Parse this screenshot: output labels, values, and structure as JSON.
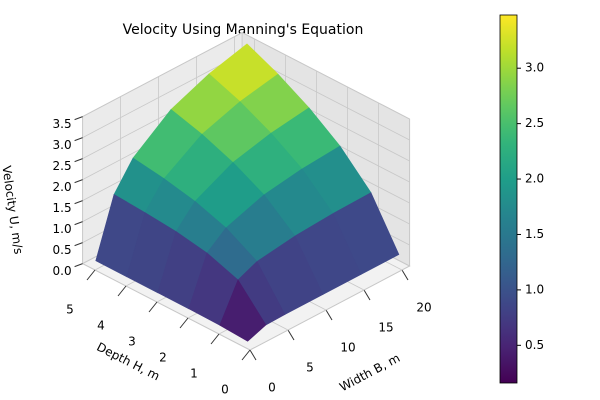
{
  "chart_data": {
    "type": "surface",
    "title": "Velocity Using Manning's Equation",
    "xlabel": "Width B, m",
    "ylabel": "Depth H, m",
    "zlabel": "Velocity U, m/s",
    "x": [
      0.1,
      2.5,
      5,
      10,
      15,
      20
    ],
    "y": [
      0.1,
      1,
      2,
      3,
      4,
      5
    ],
    "z": [
      [
        0.16,
        0.32,
        0.33,
        0.33,
        0.33,
        0.33
      ],
      [
        0.2,
        1.05,
        1.25,
        1.38,
        1.44,
        1.46
      ],
      [
        0.21,
        1.31,
        1.67,
        1.98,
        2.12,
        2.19
      ],
      [
        0.21,
        1.44,
        1.92,
        2.37,
        2.59,
        2.72
      ],
      [
        0.21,
        1.51,
        2.08,
        2.66,
        2.96,
        3.14
      ],
      [
        0.21,
        1.56,
        2.19,
        2.87,
        3.24,
        3.48
      ]
    ],
    "xlim": [
      0,
      21
    ],
    "ylim": [
      0,
      5.4
    ],
    "zlim": [
      0,
      3.5
    ],
    "xticks": [
      0,
      5,
      10,
      15,
      20
    ],
    "yticks": [
      0,
      1,
      2,
      3,
      4,
      5
    ],
    "zticks": [
      {
        "value": 0,
        "label": "0.0"
      },
      {
        "value": 0.5,
        "label": "0.5"
      },
      {
        "value": 1,
        "label": "1.0"
      },
      {
        "value": 1.5,
        "label": "1.5"
      },
      {
        "value": 2,
        "label": "2.0"
      },
      {
        "value": 2.5,
        "label": "2.5"
      },
      {
        "value": 3,
        "label": "3.0"
      },
      {
        "value": 3.5,
        "label": "3.5"
      }
    ],
    "colormap": "viridis",
    "clim": [
      0.16,
      3.48
    ],
    "colorbar_ticks": [
      {
        "value": 0.5,
        "label": "0.5"
      },
      {
        "value": 1,
        "label": "1.0"
      },
      {
        "value": 1.5,
        "label": "1.5"
      },
      {
        "value": 2,
        "label": "2.0"
      },
      {
        "value": 2.5,
        "label": "2.5"
      },
      {
        "value": 3,
        "label": "3.0"
      }
    ],
    "grid": true
  }
}
